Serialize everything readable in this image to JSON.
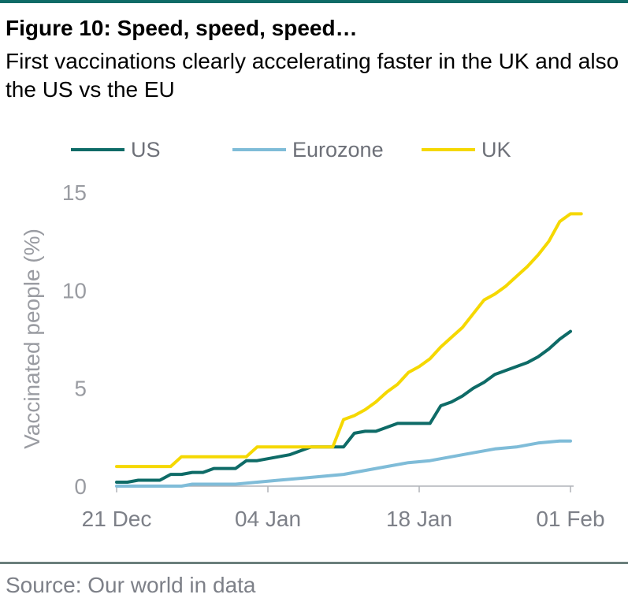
{
  "header": {
    "title": "Figure 10: Speed, speed, speed…",
    "subtitle": "First vaccinations clearly accelerating faster in the UK and also the US vs the EU"
  },
  "footer": {
    "source": "Source: Our world in data"
  },
  "chart_data": {
    "type": "line",
    "ylabel": "Vaccinated people (%)",
    "ylim": [
      0,
      15
    ],
    "yticks": [
      0,
      5,
      10,
      15
    ],
    "xlim": [
      "2020-12-21",
      "2021-02-01"
    ],
    "xticks": [
      {
        "date": "2020-12-21",
        "label": "21 Dec"
      },
      {
        "date": "2021-01-04",
        "label": "04 Jan"
      },
      {
        "date": "2021-01-18",
        "label": "18 Jan"
      },
      {
        "date": "2021-02-01",
        "label": "01 Feb"
      }
    ],
    "grid": false,
    "legend_position": "top",
    "series": [
      {
        "name": "US",
        "color": "#0e6b67",
        "points": [
          [
            "2020-12-21",
            0.2
          ],
          [
            "2020-12-22",
            0.2
          ],
          [
            "2020-12-23",
            0.3
          ],
          [
            "2020-12-24",
            0.3
          ],
          [
            "2020-12-25",
            0.3
          ],
          [
            "2020-12-26",
            0.6
          ],
          [
            "2020-12-27",
            0.6
          ],
          [
            "2020-12-28",
            0.7
          ],
          [
            "2020-12-29",
            0.7
          ],
          [
            "2020-12-30",
            0.9
          ],
          [
            "2020-12-31",
            0.9
          ],
          [
            "2021-01-01",
            0.9
          ],
          [
            "2021-01-02",
            1.3
          ],
          [
            "2021-01-03",
            1.3
          ],
          [
            "2021-01-04",
            1.4
          ],
          [
            "2021-01-05",
            1.5
          ],
          [
            "2021-01-06",
            1.6
          ],
          [
            "2021-01-07",
            1.8
          ],
          [
            "2021-01-08",
            2.0
          ],
          [
            "2021-01-09",
            2.0
          ],
          [
            "2021-01-10",
            2.0
          ],
          [
            "2021-01-11",
            2.0
          ],
          [
            "2021-01-12",
            2.7
          ],
          [
            "2021-01-13",
            2.8
          ],
          [
            "2021-01-14",
            2.8
          ],
          [
            "2021-01-15",
            3.0
          ],
          [
            "2021-01-16",
            3.2
          ],
          [
            "2021-01-17",
            3.2
          ],
          [
            "2021-01-18",
            3.2
          ],
          [
            "2021-01-19",
            3.2
          ],
          [
            "2021-01-20",
            4.1
          ],
          [
            "2021-01-21",
            4.3
          ],
          [
            "2021-01-22",
            4.6
          ],
          [
            "2021-01-23",
            5.0
          ],
          [
            "2021-01-24",
            5.3
          ],
          [
            "2021-01-25",
            5.7
          ],
          [
            "2021-01-26",
            5.9
          ],
          [
            "2021-01-27",
            6.1
          ],
          [
            "2021-01-28",
            6.3
          ],
          [
            "2021-01-29",
            6.6
          ],
          [
            "2021-01-30",
            7.0
          ],
          [
            "2021-01-31",
            7.5
          ],
          [
            "2021-02-01",
            7.9
          ]
        ]
      },
      {
        "name": "Eurozone",
        "color": "#7fbcd8",
        "points": [
          [
            "2020-12-21",
            0.0
          ],
          [
            "2020-12-24",
            0.0
          ],
          [
            "2020-12-27",
            0.0
          ],
          [
            "2020-12-28",
            0.1
          ],
          [
            "2020-12-30",
            0.1
          ],
          [
            "2021-01-01",
            0.1
          ],
          [
            "2021-01-03",
            0.2
          ],
          [
            "2021-01-05",
            0.3
          ],
          [
            "2021-01-07",
            0.4
          ],
          [
            "2021-01-09",
            0.5
          ],
          [
            "2021-01-11",
            0.6
          ],
          [
            "2021-01-13",
            0.8
          ],
          [
            "2021-01-15",
            1.0
          ],
          [
            "2021-01-17",
            1.2
          ],
          [
            "2021-01-19",
            1.3
          ],
          [
            "2021-01-21",
            1.5
          ],
          [
            "2021-01-23",
            1.7
          ],
          [
            "2021-01-25",
            1.9
          ],
          [
            "2021-01-27",
            2.0
          ],
          [
            "2021-01-29",
            2.2
          ],
          [
            "2021-01-31",
            2.3
          ],
          [
            "2021-02-01",
            2.3
          ]
        ]
      },
      {
        "name": "UK",
        "color": "#f5d800",
        "points": [
          [
            "2020-12-21",
            1.0
          ],
          [
            "2020-12-24",
            1.0
          ],
          [
            "2020-12-26",
            1.0
          ],
          [
            "2020-12-27",
            1.5
          ],
          [
            "2020-12-28",
            1.5
          ],
          [
            "2021-01-02",
            1.5
          ],
          [
            "2021-01-03",
            2.0
          ],
          [
            "2021-01-04",
            2.0
          ],
          [
            "2021-01-09",
            2.0
          ],
          [
            "2021-01-10",
            2.0
          ],
          [
            "2021-01-11",
            3.4
          ],
          [
            "2021-01-12",
            3.6
          ],
          [
            "2021-01-13",
            3.9
          ],
          [
            "2021-01-14",
            4.3
          ],
          [
            "2021-01-15",
            4.8
          ],
          [
            "2021-01-16",
            5.2
          ],
          [
            "2021-01-17",
            5.8
          ],
          [
            "2021-01-18",
            6.1
          ],
          [
            "2021-01-19",
            6.5
          ],
          [
            "2021-01-20",
            7.1
          ],
          [
            "2021-01-21",
            7.6
          ],
          [
            "2021-01-22",
            8.1
          ],
          [
            "2021-01-23",
            8.8
          ],
          [
            "2021-01-24",
            9.5
          ],
          [
            "2021-01-25",
            9.8
          ],
          [
            "2021-01-26",
            10.2
          ],
          [
            "2021-01-27",
            10.7
          ],
          [
            "2021-01-28",
            11.2
          ],
          [
            "2021-01-29",
            11.8
          ],
          [
            "2021-01-30",
            12.5
          ],
          [
            "2021-01-31",
            13.5
          ],
          [
            "2021-02-01",
            13.9
          ],
          [
            "2021-02-02",
            13.9
          ]
        ]
      }
    ]
  }
}
